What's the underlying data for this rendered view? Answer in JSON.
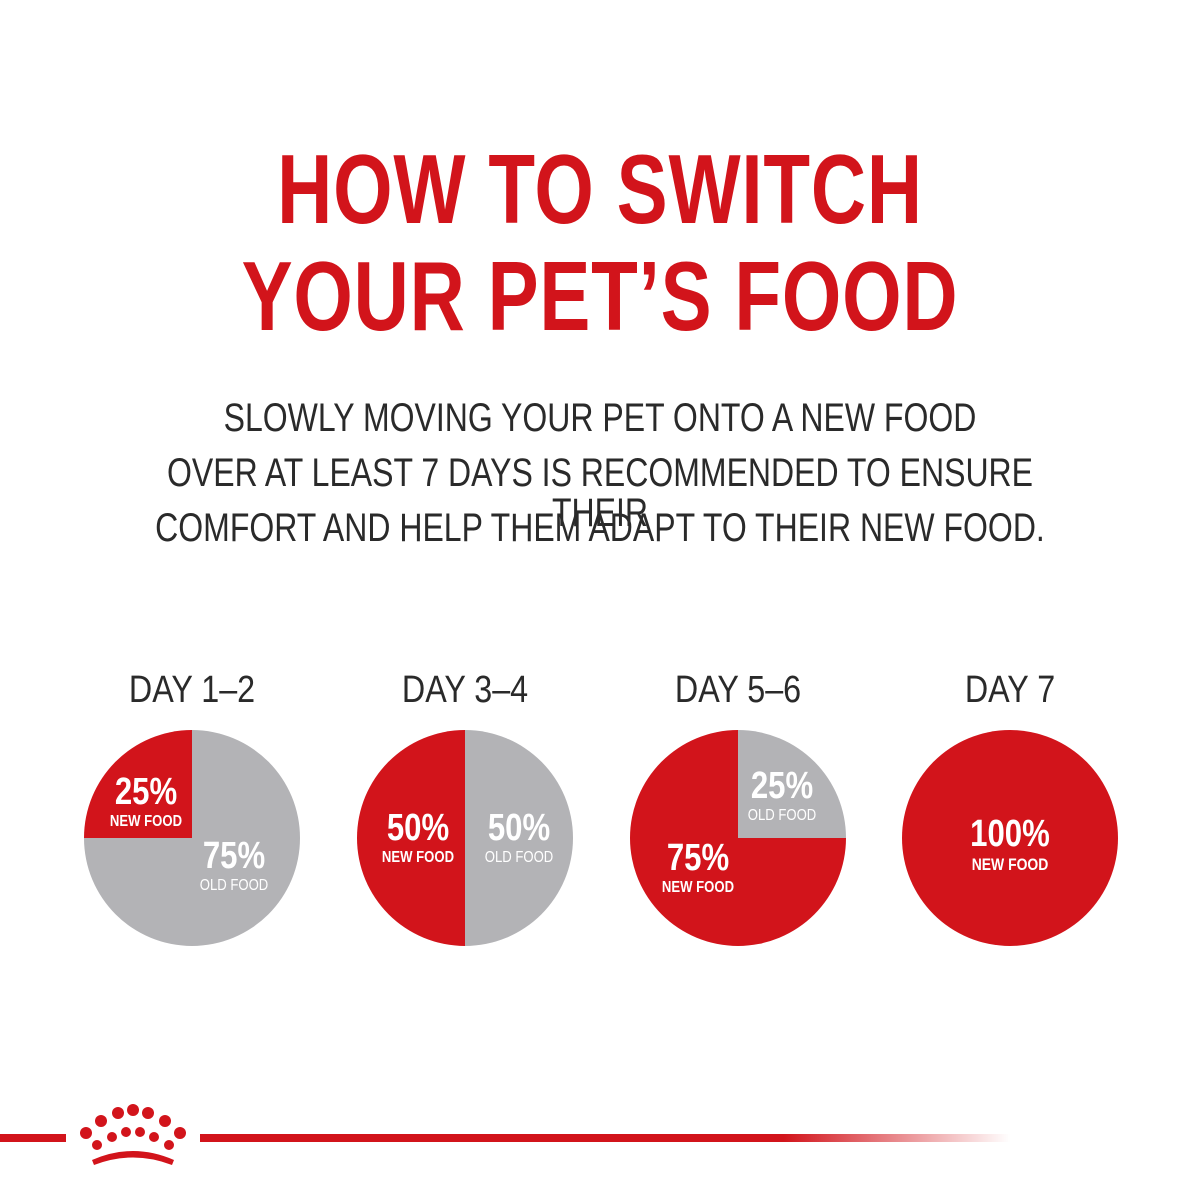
{
  "header": {
    "title_line_1": "HOW TO SWITCH",
    "title_line_2": "YOUR PET’S FOOD",
    "subtitle_line_1": "SLOWLY MOVING YOUR PET ONTO A NEW FOOD",
    "subtitle_line_2": "OVER AT LEAST 7 DAYS IS RECOMMENDED TO ENSURE THEIR",
    "subtitle_line_3": "COMFORT AND HELP THEM ADAPT TO THEIR NEW FOOD."
  },
  "colors": {
    "brand_red": "#d2141b",
    "old_food_gray": "#b3b3b6",
    "text_dark": "#2a2a2a"
  },
  "footer": {
    "logo": "royal-crown-icon"
  },
  "chart_data": [
    {
      "type": "pie",
      "title": "DAY 1–2",
      "slices": [
        {
          "label": "NEW FOOD",
          "percent_label": "25%",
          "value": 25,
          "color": "#d2141b"
        },
        {
          "label": "OLD FOOD",
          "percent_label": "75%",
          "value": 75,
          "color": "#b3b3b6"
        }
      ]
    },
    {
      "type": "pie",
      "title": "DAY 3–4",
      "slices": [
        {
          "label": "NEW FOOD",
          "percent_label": "50%",
          "value": 50,
          "color": "#d2141b"
        },
        {
          "label": "OLD FOOD",
          "percent_label": "50%",
          "value": 50,
          "color": "#b3b3b6"
        }
      ]
    },
    {
      "type": "pie",
      "title": "DAY 5–6",
      "slices": [
        {
          "label": "NEW FOOD",
          "percent_label": "75%",
          "value": 75,
          "color": "#d2141b"
        },
        {
          "label": "OLD FOOD",
          "percent_label": "25%",
          "value": 25,
          "color": "#b3b3b6"
        }
      ]
    },
    {
      "type": "pie",
      "title": "DAY 7",
      "slices": [
        {
          "label": "NEW FOOD",
          "percent_label": "100%",
          "value": 100,
          "color": "#d2141b"
        }
      ]
    }
  ]
}
